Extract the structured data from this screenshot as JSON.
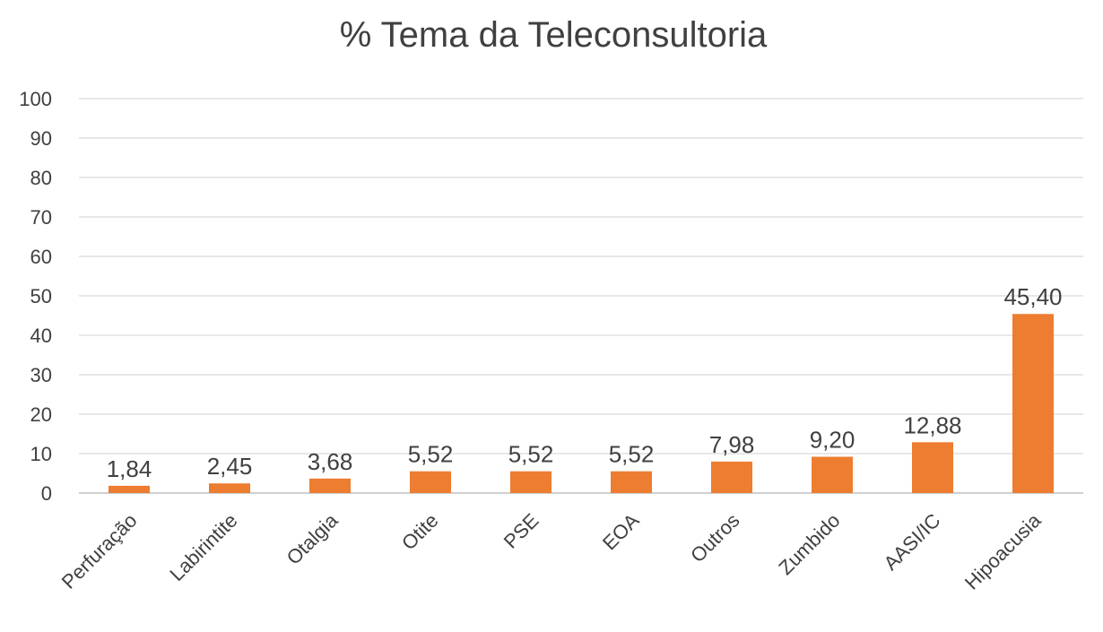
{
  "chart_data": {
    "type": "bar",
    "title": "% Tema da Teleconsultoria",
    "categories": [
      "Perfuração",
      "Labirintite",
      "Otalgia",
      "Otite",
      "PSE",
      "EOA",
      "Outros",
      "Zumbido",
      "AASI/IC",
      "Hipoacusia"
    ],
    "values": [
      1.84,
      2.45,
      3.68,
      5.52,
      5.52,
      5.52,
      7.98,
      9.2,
      12.88,
      45.4
    ],
    "data_labels": [
      "1,84",
      "2,45",
      "3,68",
      "5,52",
      "5,52",
      "5,52",
      "7,98",
      "9,20",
      "12,88",
      "45,40"
    ],
    "ylim": [
      0,
      100
    ],
    "yticks": [
      0,
      10,
      20,
      30,
      40,
      50,
      60,
      70,
      80,
      90,
      100
    ],
    "xlabel": "",
    "ylabel": "",
    "grid": true,
    "legend": "none",
    "bar_color": "#ED7D31",
    "gridline_color": "#D9D9D9",
    "text_color": "#404040"
  }
}
